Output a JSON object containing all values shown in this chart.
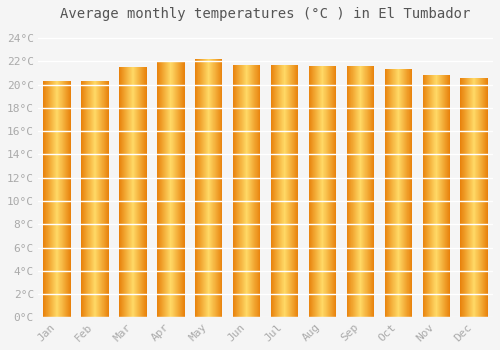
{
  "title": "Average monthly temperatures (°C ) in El Tumbador",
  "months": [
    "Jan",
    "Feb",
    "Mar",
    "Apr",
    "May",
    "Jun",
    "Jul",
    "Aug",
    "Sep",
    "Oct",
    "Nov",
    "Dec"
  ],
  "values": [
    20.3,
    20.3,
    21.5,
    21.9,
    22.2,
    21.7,
    21.7,
    21.6,
    21.6,
    21.3,
    20.8,
    20.6
  ],
  "ylim": [
    0,
    25
  ],
  "yticks": [
    0,
    2,
    4,
    6,
    8,
    10,
    12,
    14,
    16,
    18,
    20,
    22,
    24
  ],
  "ytick_labels": [
    "0°C",
    "2°C",
    "4°C",
    "6°C",
    "8°C",
    "10°C",
    "12°C",
    "14°C",
    "16°C",
    "18°C",
    "20°C",
    "22°C",
    "24°C"
  ],
  "bar_color_center": "#FFD966",
  "bar_color_edge": "#E8820C",
  "background_color": "#f5f5f5",
  "grid_color": "#ffffff",
  "title_fontsize": 10,
  "tick_fontsize": 8,
  "font_family": "monospace"
}
